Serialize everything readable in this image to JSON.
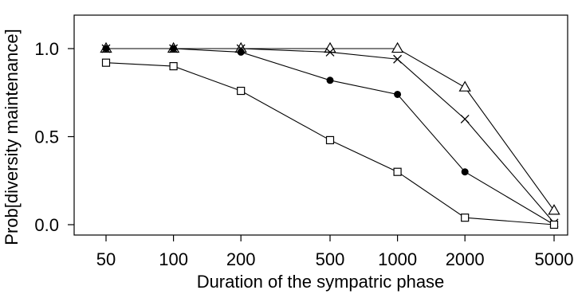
{
  "chart_data": {
    "type": "line",
    "xscale": "log",
    "x": [
      50,
      100,
      200,
      500,
      1000,
      2000,
      5000
    ],
    "x_tick_labels": [
      "50",
      "100",
      "200",
      "500",
      "1000",
      "2000",
      "5000"
    ],
    "xlabel": "Duration of the sympatric phase",
    "ylabel": "Prob[diversity maintenance]",
    "ylim": [
      0.0,
      1.0
    ],
    "y_ticks": [
      0.0,
      0.5,
      1.0
    ],
    "y_tick_labels": [
      "0.0",
      "0.5",
      "1.0"
    ],
    "grid": false,
    "legend": "none",
    "series": [
      {
        "marker": "triangle-open",
        "values": [
          1.0,
          1.0,
          1.0,
          1.0,
          1.0,
          0.78,
          0.08
        ]
      },
      {
        "marker": "cross",
        "values": [
          1.0,
          1.0,
          1.0,
          0.98,
          0.94,
          0.6,
          0.01
        ]
      },
      {
        "marker": "circle-filled",
        "values": [
          1.0,
          1.0,
          0.98,
          0.82,
          0.74,
          0.3,
          0.0
        ]
      },
      {
        "marker": "square-open",
        "values": [
          0.92,
          0.9,
          0.76,
          0.48,
          0.3,
          0.04,
          0.0
        ]
      }
    ]
  }
}
